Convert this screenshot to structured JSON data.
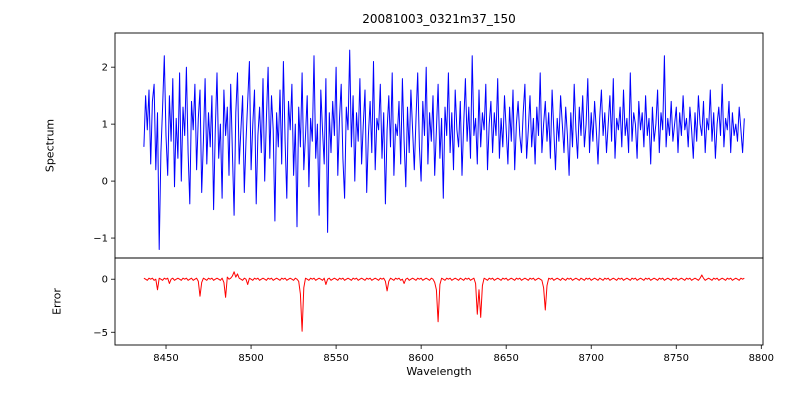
{
  "chart_data": {
    "type": "line",
    "title": "20081003_0321m37_150",
    "xlabel": "Wavelength",
    "grid": false,
    "legend": "none",
    "x_start": 8437,
    "x_step": 1,
    "xlim": [
      8420,
      8801
    ],
    "xticks": [
      8450,
      8500,
      8550,
      8600,
      8650,
      8700,
      8750,
      8800
    ],
    "panels": [
      {
        "name": "spectrum",
        "ylabel": "Spectrum",
        "color": "#0000ff",
        "ylim": [
          -1.35,
          2.6
        ],
        "yticks": [
          -1,
          0,
          1,
          2
        ],
        "values": [
          0.6,
          1.5,
          0.9,
          1.6,
          0.3,
          1.4,
          1.7,
          0.2,
          1.2,
          -1.2,
          0.5,
          1.3,
          2.2,
          0.8,
          0.1,
          1.5,
          0.7,
          1.8,
          -0.1,
          1.1,
          0.4,
          1.9,
          0.0,
          1.3,
          0.8,
          2.0,
          0.5,
          -0.4,
          1.4,
          0.9,
          1.7,
          0.2,
          1.1,
          1.6,
          -0.2,
          0.7,
          1.8,
          0.3,
          1.2,
          0.6,
          1.5,
          -0.5,
          0.9,
          1.9,
          0.4,
          1.0,
          -0.3,
          1.6,
          0.8,
          1.3,
          0.1,
          1.7,
          0.5,
          -0.6,
          1.2,
          1.9,
          0.3,
          0.9,
          1.5,
          -0.2,
          0.7,
          1.4,
          2.1,
          0.2,
          1.0,
          1.6,
          -0.4,
          0.8,
          1.3,
          0.5,
          1.8,
          0.0,
          1.1,
          2.0,
          0.4,
          1.5,
          0.9,
          -0.7,
          1.2,
          0.6,
          1.6,
          0.3,
          2.1,
          0.7,
          -0.3,
          1.4,
          0.9,
          1.7,
          0.1,
          1.0,
          -0.8,
          1.3,
          0.6,
          1.9,
          0.2,
          0.8,
          1.5,
          -0.1,
          1.1,
          0.7,
          2.2,
          0.4,
          1.0,
          -0.6,
          1.6,
          0.9,
          0.3,
          1.8,
          -0.9,
          1.2,
          0.5,
          1.4,
          0.8,
          2.0,
          0.1,
          1.1,
          1.7,
          0.4,
          -0.3,
          1.3,
          0.9,
          2.3,
          0.6,
          1.5,
          0.0,
          1.2,
          0.7,
          1.8,
          0.3,
          1.0,
          1.6,
          -0.2,
          0.8,
          1.4,
          0.5,
          2.1,
          0.2,
          1.1,
          0.9,
          1.7,
          0.4,
          1.2,
          -0.4,
          0.9,
          1.5,
          0.6,
          1.9,
          0.1,
          1.0,
          0.8,
          1.4,
          0.3,
          1.8,
          0.7,
          -0.1,
          1.3,
          0.5,
          1.6,
          0.9,
          0.2,
          1.1,
          1.9,
          0.6,
          0.0,
          1.4,
          0.8,
          2.0,
          0.3,
          1.2,
          0.7,
          1.5,
          0.1,
          0.9,
          1.7,
          0.4,
          1.1,
          -0.3,
          1.3,
          0.8,
          1.9,
          0.5,
          1.2,
          0.2,
          1.6,
          0.9,
          0.6,
          1.4,
          0.1,
          1.0,
          1.8,
          0.7,
          1.3,
          0.4,
          2.2,
          0.8,
          1.1,
          0.3,
          1.6,
          0.6,
          1.2,
          0.9,
          1.7,
          0.2,
          1.0,
          1.4,
          0.5,
          1.2,
          0.8,
          1.8,
          0.4,
          1.1,
          0.6,
          1.5,
          0.9,
          0.3,
          1.3,
          0.7,
          1.6,
          0.2,
          1.0,
          1.4,
          0.8,
          0.5,
          1.2,
          1.7,
          0.4,
          0.9,
          1.5,
          0.6,
          1.1,
          0.3,
          1.3,
          0.8,
          1.9,
          0.5,
          1.0,
          1.4,
          0.7,
          1.2,
          0.4,
          1.6,
          0.9,
          0.2,
          1.1,
          0.7,
          1.5,
          1.0,
          0.5,
          1.3,
          0.8,
          0.1,
          1.2,
          0.6,
          1.7,
          0.9,
          0.4,
          1.3,
          0.8,
          1.5,
          0.6,
          1.0,
          1.8,
          0.5,
          1.2,
          0.7,
          1.4,
          0.9,
          0.3,
          1.1,
          1.6,
          0.8,
          1.2,
          0.5,
          1.0,
          1.5,
          0.7,
          1.8,
          0.4,
          1.1,
          0.9,
          1.3,
          0.6,
          1.6,
          0.8,
          1.1,
          0.5,
          1.9,
          0.7,
          1.2,
          1.0,
          0.4,
          1.4,
          0.9,
          1.2,
          0.6,
          1.5,
          0.8,
          1.1,
          0.3,
          1.3,
          0.7,
          1.0,
          1.6,
          0.5,
          1.2,
          0.9,
          2.2,
          0.6,
          1.1,
          0.8,
          1.4,
          0.7,
          1.0,
          1.3,
          0.5,
          1.2,
          0.8,
          1.5,
          0.9,
          1.1,
          0.6,
          1.3,
          0.9,
          0.4,
          1.2,
          0.7,
          1.5,
          1.0,
          0.8,
          1.4,
          0.5,
          1.1,
          0.9,
          1.6,
          0.7,
          1.2,
          0.4,
          1.0,
          1.3,
          0.8,
          1.7,
          0.6,
          1.1,
          0.9,
          1.4,
          0.5,
          1.2,
          0.8,
          1.0,
          0.7,
          1.3,
          0.9,
          0.5,
          1.1
        ]
      },
      {
        "name": "error",
        "ylabel": "Error",
        "color": "#ff0000",
        "ylim": [
          -6.2,
          2.0
        ],
        "yticks": [
          -5,
          0
        ],
        "values": [
          0.1,
          0.0,
          -0.1,
          0.1,
          0.0,
          0.1,
          -0.1,
          0.0,
          -1.0,
          0.1,
          0.0,
          -0.1,
          0.1,
          0.0,
          0.1,
          -0.4,
          0.0,
          0.1,
          -0.1,
          0.0,
          0.1,
          0.0,
          -0.1,
          0.1,
          0.0,
          0.1,
          -0.1,
          0.0,
          0.1,
          -0.1,
          0.0,
          0.1,
          -0.2,
          -1.6,
          -0.3,
          0.1,
          0.0,
          -0.1,
          0.1,
          0.0,
          0.1,
          -0.1,
          0.0,
          0.1,
          0.0,
          -0.1,
          0.1,
          -0.3,
          -1.7,
          0.2,
          0.0,
          0.1,
          0.3,
          0.7,
          0.2,
          0.5,
          0.1,
          0.0,
          -0.1,
          0.1,
          0.0,
          -0.5,
          0.1,
          0.0,
          -0.1,
          0.1,
          0.0,
          0.1,
          -0.1,
          0.0,
          0.1,
          0.0,
          -0.1,
          0.1,
          0.0,
          0.1,
          -0.1,
          0.0,
          0.1,
          0.0,
          -0.1,
          0.1,
          0.0,
          0.1,
          -0.1,
          0.0,
          0.1,
          0.0,
          -0.1,
          0.1,
          0.0,
          -0.2,
          -1.4,
          -4.9,
          -0.8,
          0.1,
          0.0,
          -0.1,
          0.1,
          0.0,
          0.1,
          -0.1,
          0.0,
          0.1,
          0.0,
          -0.1,
          0.1,
          -0.5,
          0.0,
          0.1,
          -0.1,
          0.0,
          0.1,
          0.0,
          -0.1,
          0.1,
          0.0,
          0.1,
          -0.1,
          0.0,
          0.1,
          0.0,
          -0.1,
          0.1,
          0.0,
          0.1,
          -0.1,
          0.0,
          0.1,
          0.0,
          -0.1,
          0.1,
          0.0,
          0.1,
          -0.1,
          0.0,
          0.1,
          0.0,
          -0.1,
          0.1,
          0.0,
          0.1,
          -0.2,
          -1.1,
          -0.2,
          0.1,
          0.0,
          -0.1,
          0.1,
          0.0,
          0.1,
          -0.1,
          0.0,
          -0.4,
          0.0,
          0.1,
          -0.1,
          0.0,
          0.1,
          0.0,
          -0.1,
          0.1,
          0.0,
          0.1,
          -0.1,
          0.0,
          0.1,
          0.0,
          -0.1,
          0.1,
          0.0,
          -0.3,
          -1.0,
          -4.0,
          -0.5,
          0.1,
          0.0,
          -0.1,
          0.1,
          0.0,
          0.1,
          -0.1,
          0.0,
          0.1,
          0.0,
          -0.1,
          0.1,
          0.0,
          -0.1,
          0.1,
          0.0,
          0.1,
          -0.1,
          0.0,
          0.1,
          -0.4,
          -3.3,
          -1.0,
          -3.6,
          -0.6,
          0.1,
          0.0,
          -0.1,
          0.1,
          0.0,
          0.1,
          -0.1,
          0.0,
          0.1,
          0.0,
          -0.1,
          0.1,
          0.0,
          0.1,
          -0.1,
          0.0,
          0.1,
          0.0,
          -0.1,
          0.1,
          0.0,
          0.1,
          -0.1,
          0.0,
          0.1,
          0.0,
          -0.1,
          0.1,
          0.0,
          0.1,
          -0.1,
          0.0,
          0.1,
          0.0,
          -0.1,
          -0.8,
          -2.9,
          -0.6,
          0.1,
          0.0,
          0.1,
          -0.1,
          0.0,
          0.1,
          0.0,
          -0.1,
          0.1,
          0.0,
          -0.1,
          0.1,
          0.0,
          0.1,
          -0.1,
          0.0,
          0.1,
          0.0,
          -0.1,
          0.1,
          0.0,
          -0.1,
          0.1,
          0.0,
          0.1,
          -0.1,
          0.0,
          0.1,
          0.0,
          -0.1,
          0.1,
          0.0,
          -0.1,
          0.1,
          0.0,
          0.1,
          -0.1,
          0.0,
          0.1,
          0.0,
          -0.1,
          0.1,
          0.0,
          0.1,
          -0.1,
          0.0,
          0.1,
          0.0,
          -0.1,
          0.1,
          0.0,
          0.1,
          -0.1,
          0.0,
          0.1,
          0.0,
          -0.1,
          0.1,
          0.0,
          0.1,
          -0.1,
          0.0,
          0.1,
          0.0,
          -0.1,
          0.1,
          0.0,
          0.1,
          -0.1,
          0.0,
          0.1,
          0.0,
          -0.1,
          0.1,
          0.0,
          0.1,
          -0.1,
          0.0,
          0.1,
          0.0,
          -0.1,
          0.1,
          0.0,
          0.1,
          -0.1,
          0.0,
          0.1,
          0.0,
          -0.1,
          0.1,
          0.4,
          0.1,
          -0.1,
          0.0,
          0.1,
          0.0,
          -0.1,
          0.1,
          0.0,
          0.1,
          -0.1,
          0.0,
          0.1,
          0.0,
          -0.1,
          0.1,
          0.0,
          0.1,
          -0.1,
          0.0,
          0.1,
          0.0,
          -0.1,
          0.1,
          0.0,
          0.1
        ]
      }
    ]
  }
}
